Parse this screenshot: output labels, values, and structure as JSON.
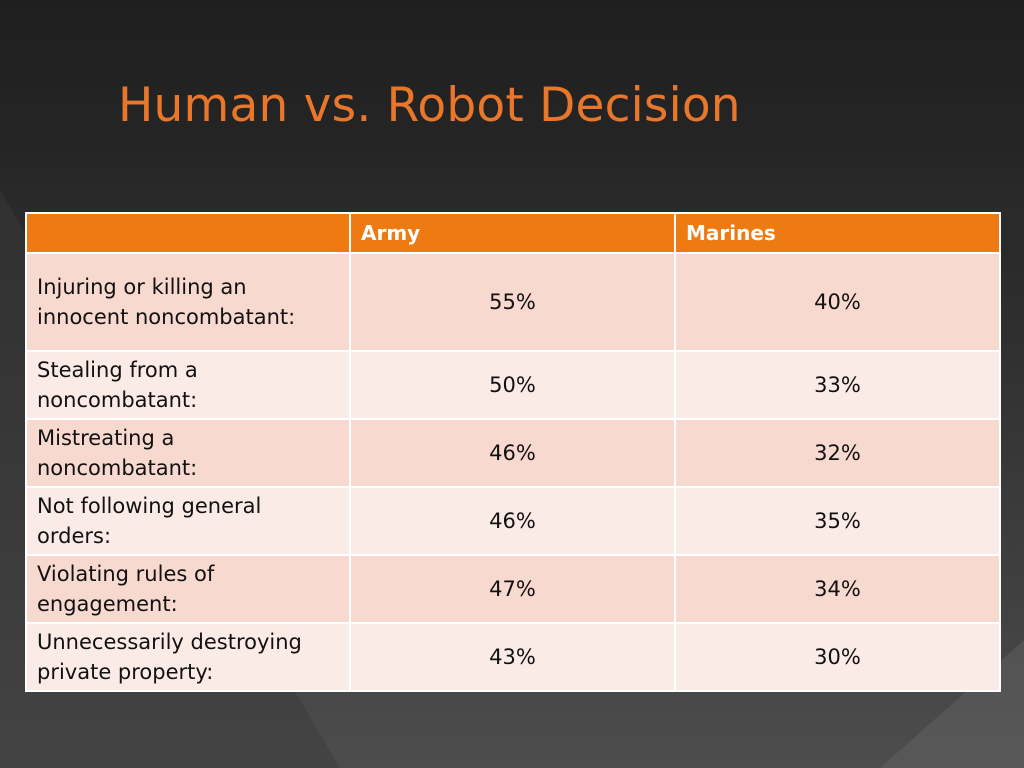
{
  "slide": {
    "title": "Human vs. Robot Decision"
  },
  "table": {
    "headers": [
      "",
      "Army",
      "Marines"
    ],
    "rows": [
      {
        "label": "Injuring or killing an innocent noncombatant:",
        "army": "55%",
        "marines": "40%"
      },
      {
        "label": "Stealing from a noncombatant:",
        "army": "50%",
        "marines": "33%"
      },
      {
        "label": "Mistreating a noncombatant:",
        "army": "46%",
        "marines": "32%"
      },
      {
        "label": "Not following general orders:",
        "army": "46%",
        "marines": "35%"
      },
      {
        "label": "Violating rules of engagement:",
        "army": "47%",
        "marines": "34%"
      },
      {
        "label": "Unnecessarily destroying private property:",
        "army": "43%",
        "marines": "30%"
      }
    ]
  },
  "colors": {
    "title": "#e8762b",
    "header_fill": "#ed7b12",
    "row_dark": "#f7d9cf",
    "row_light": "#fbebe6"
  }
}
